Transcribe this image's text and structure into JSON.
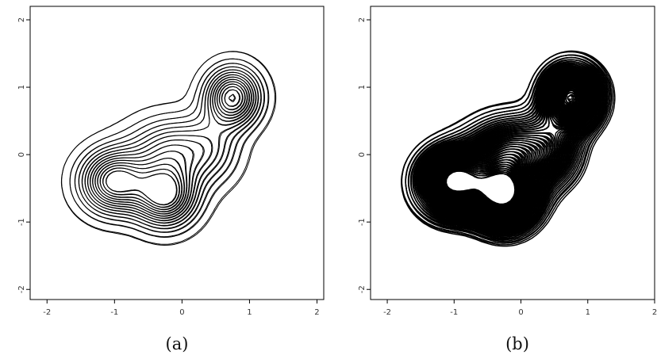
{
  "chart_data": [
    {
      "type": "contour",
      "caption": "(a)",
      "xlim": [
        -2,
        2
      ],
      "ylim": [
        -2,
        2
      ],
      "x_ticks": [
        "-2",
        "-1",
        "0",
        "1",
        "2"
      ],
      "y_ticks": [
        "-2",
        "-1",
        "0",
        "1",
        "2"
      ],
      "modes": [
        {
          "x": -1.0,
          "y": -0.4
        },
        {
          "x": -0.25,
          "y": -0.6
        },
        {
          "x": 0.75,
          "y": 0.85
        }
      ],
      "line_color": "#000000",
      "density": "light"
    },
    {
      "type": "contour",
      "caption": "(b)",
      "xlim": [
        -2,
        2
      ],
      "ylim": [
        -2,
        2
      ],
      "x_ticks": [
        "-2",
        "-1",
        "0",
        "1",
        "2"
      ],
      "y_ticks": [
        "-2",
        "-1",
        "0",
        "1",
        "2"
      ],
      "modes": [
        {
          "x": -1.0,
          "y": -0.4
        },
        {
          "x": -0.25,
          "y": -0.6
        },
        {
          "x": 0.75,
          "y": 0.85
        }
      ],
      "line_color": "#000000",
      "density": "heavy"
    }
  ]
}
